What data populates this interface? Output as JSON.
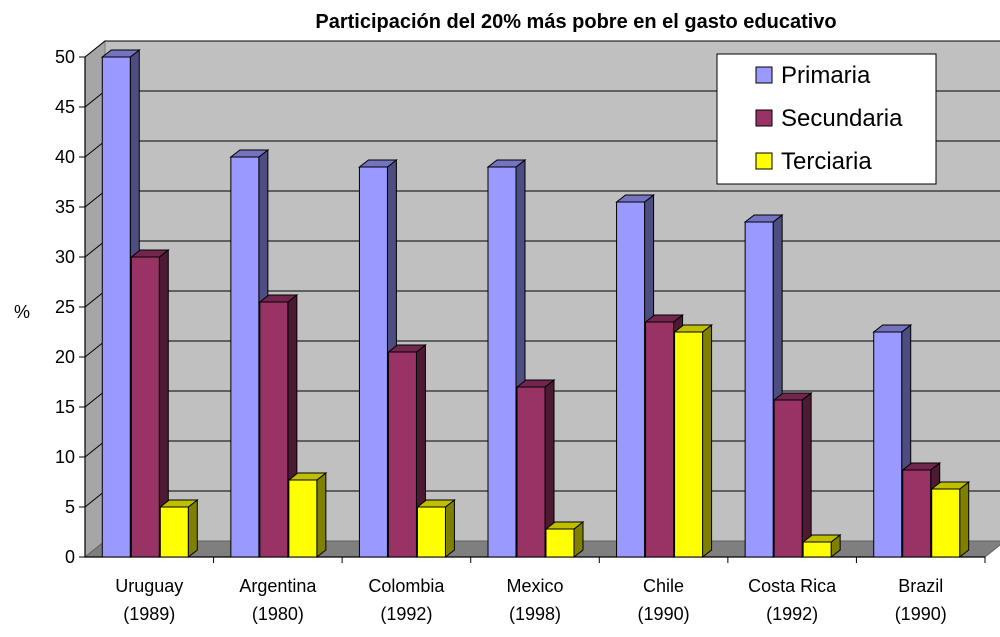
{
  "chart_data": {
    "type": "bar",
    "title": "Participación del 20% más pobre en el gasto educativo",
    "ylabel": "%",
    "xlabel": "",
    "ylim": [
      0,
      50
    ],
    "yticks": [
      0,
      5,
      10,
      15,
      20,
      25,
      30,
      35,
      40,
      45,
      50
    ],
    "grid": true,
    "legend_position": "top-right",
    "categories": [
      [
        "Uruguay",
        "(1989)"
      ],
      [
        "Argentina",
        "(1980)"
      ],
      [
        "Colombia",
        "(1992)"
      ],
      [
        "Mexico",
        "(1998)"
      ],
      [
        "Chile",
        "(1990)"
      ],
      [
        "Costa Rica",
        "(1992)"
      ],
      [
        "Brazil",
        "(1990)"
      ]
    ],
    "series": [
      {
        "name": "Primaria",
        "color": "#9999ff",
        "values": [
          50,
          40,
          39,
          39,
          35.5,
          33.5,
          22.5
        ]
      },
      {
        "name": "Secundaria",
        "color": "#993366",
        "values": [
          30,
          25.5,
          20.5,
          17,
          23.5,
          15.7,
          8.7
        ]
      },
      {
        "name": "Terciaria",
        "color": "#ffff00",
        "values": [
          5,
          7.7,
          5,
          2.8,
          22.5,
          1.5,
          6.8
        ]
      }
    ]
  }
}
